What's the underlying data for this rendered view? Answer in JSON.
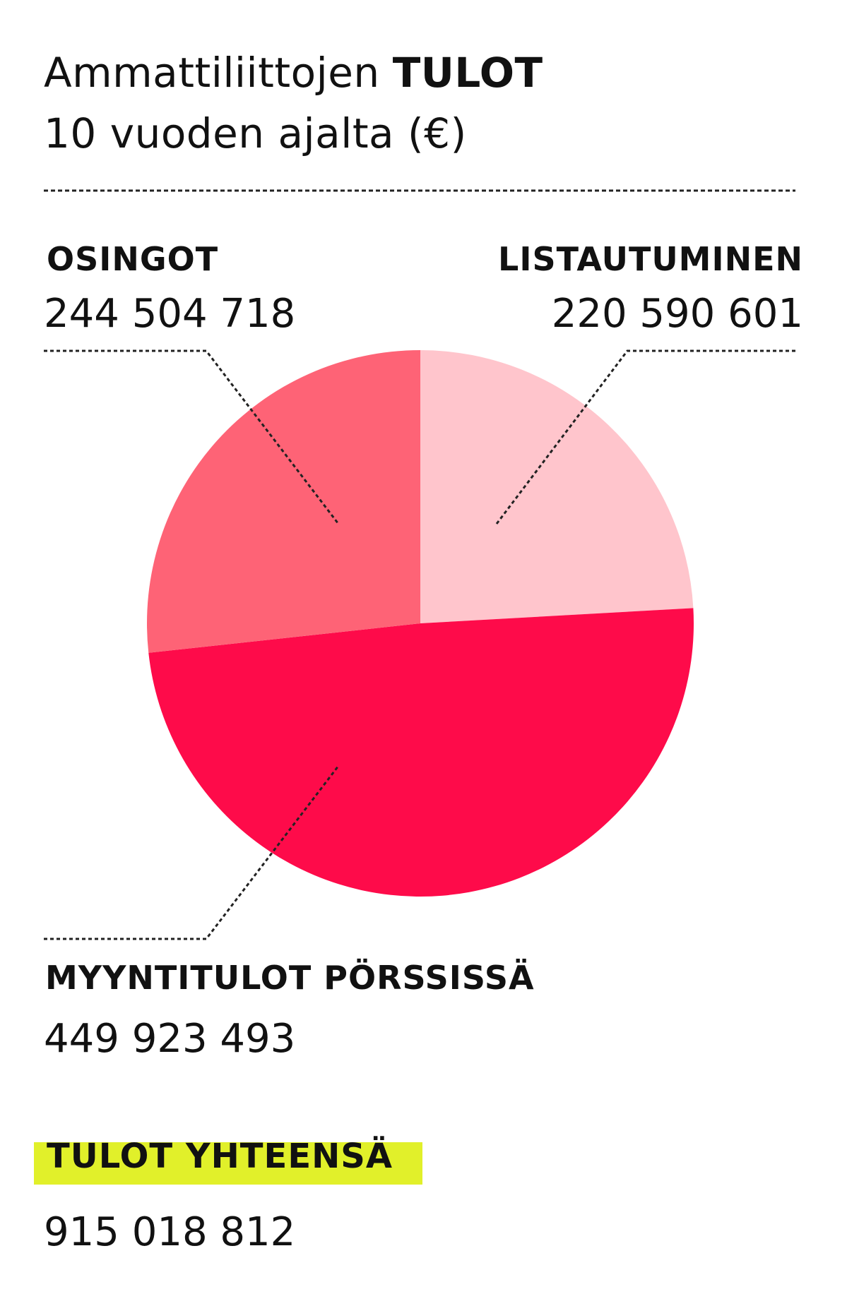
{
  "title": {
    "line1_prefix": "Ammattiliittojen",
    "line1_highlight": "TULOT",
    "line2": "10 vuoden ajalta (€)"
  },
  "colors": {
    "highlight": "#e1f02a",
    "listautuminen": "#ffc5cc",
    "osingot": "#fe6376",
    "myyntitulot": "#fe0b4a",
    "leader": "#222222"
  },
  "chart_data": {
    "type": "pie",
    "start": "12 o'clock",
    "direction": "clockwise",
    "slices": [
      {
        "label": "LISTAUTUMINEN",
        "value": 220590601,
        "value_text": "220 590 601",
        "color": "#ffc5cc"
      },
      {
        "label": "MYYNTITULOT PÖRSSISSÄ",
        "value": 449923493,
        "value_text": "449 923 493",
        "color": "#fe0b4a"
      },
      {
        "label": "OSINGOT",
        "value": 244504718,
        "value_text": "244 504 718",
        "color": "#fe6376"
      }
    ],
    "total": {
      "label": "TULOT YHTEENSÄ",
      "value": 915018812,
      "value_text": "915 018 812"
    }
  }
}
